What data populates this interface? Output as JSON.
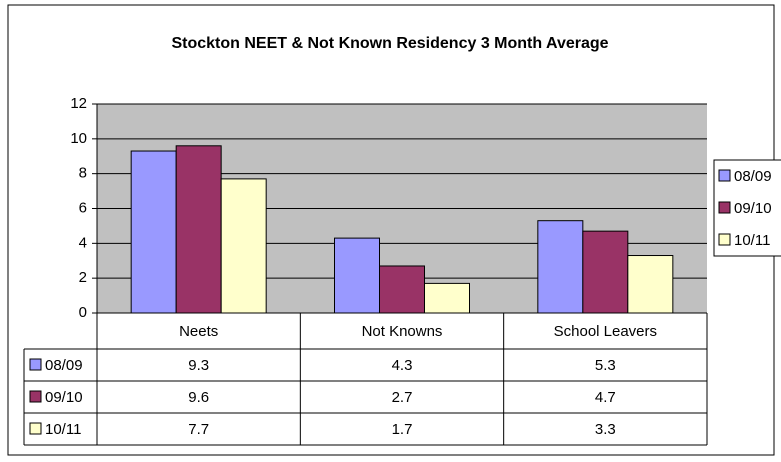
{
  "chart_data": {
    "type": "bar",
    "title": "Stockton NEET & Not Known Residency 3 Month Average",
    "categories": [
      "Neets",
      "Not Knowns",
      "School Leavers"
    ],
    "series": [
      {
        "name": "08/09",
        "color": "#9999ff",
        "values": [
          9.3,
          4.3,
          5.3
        ]
      },
      {
        "name": "09/10",
        "color": "#993366",
        "values": [
          9.6,
          2.7,
          4.7
        ]
      },
      {
        "name": "10/11",
        "color": "#ffffcc",
        "values": [
          7.7,
          1.7,
          3.3
        ]
      }
    ],
    "ylim": [
      0,
      12
    ],
    "yticks": [
      0,
      2,
      4,
      6,
      8,
      10,
      12
    ],
    "grid": true,
    "legend": "right",
    "data_table": true
  }
}
